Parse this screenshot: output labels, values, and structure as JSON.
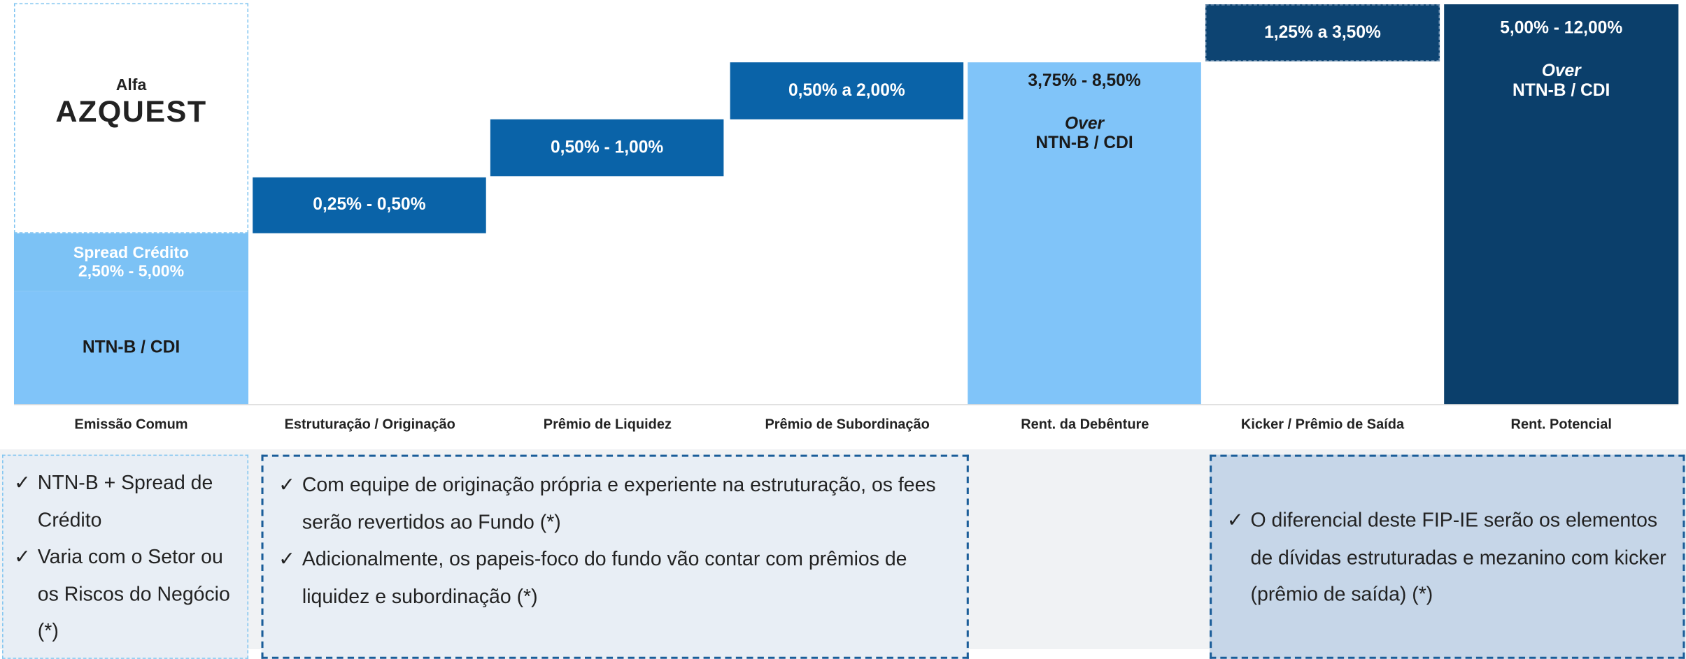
{
  "logo": {
    "top": "Alfa",
    "name": "AZQUEST"
  },
  "columns": [
    {
      "label": "Emissão Comum",
      "spread_title": "Spread Crédito",
      "spread": "2,50%  - 5,00%",
      "base": "NTN-B / CDI"
    },
    {
      "label": "Estruturação / Originação",
      "value": "0,25%  - 0,50%"
    },
    {
      "label": "Prêmio de Liquidez",
      "value": "0,50%  - 1,00%"
    },
    {
      "label": "Prêmio de Subordinação",
      "value": "0,50%  a 2,00%"
    },
    {
      "label": "Rent. da Debênture",
      "value": "3,75% - 8,50%",
      "over": "Over",
      "base": "NTN-B / CDI"
    },
    {
      "label": "Kicker / Prêmio de Saída",
      "value": "1,25%  a 3,50%"
    },
    {
      "label": "Rent. Potencial",
      "value": "5,00% - 12,00%",
      "over": "Over",
      "base": "NTN-B / CDI"
    }
  ],
  "notes": [
    {
      "items": [
        "NTN-B + Spread de Crédito",
        "Varia com o Setor ou os Riscos do Negócio (*)"
      ]
    },
    {
      "items": [
        "Com equipe de originação própria e experiente na estruturação, os fees serão revertidos ao Fundo (*)",
        "Adicionalmente, os papeis-foco do fundo vão contar com prêmios de liquidez e subordinação (*)"
      ]
    },
    {
      "items": [
        "O diferencial deste FIP-IE serão os elementos de dívidas estruturadas e mezanino com kicker (prêmio de saída) (*)"
      ]
    }
  ]
}
